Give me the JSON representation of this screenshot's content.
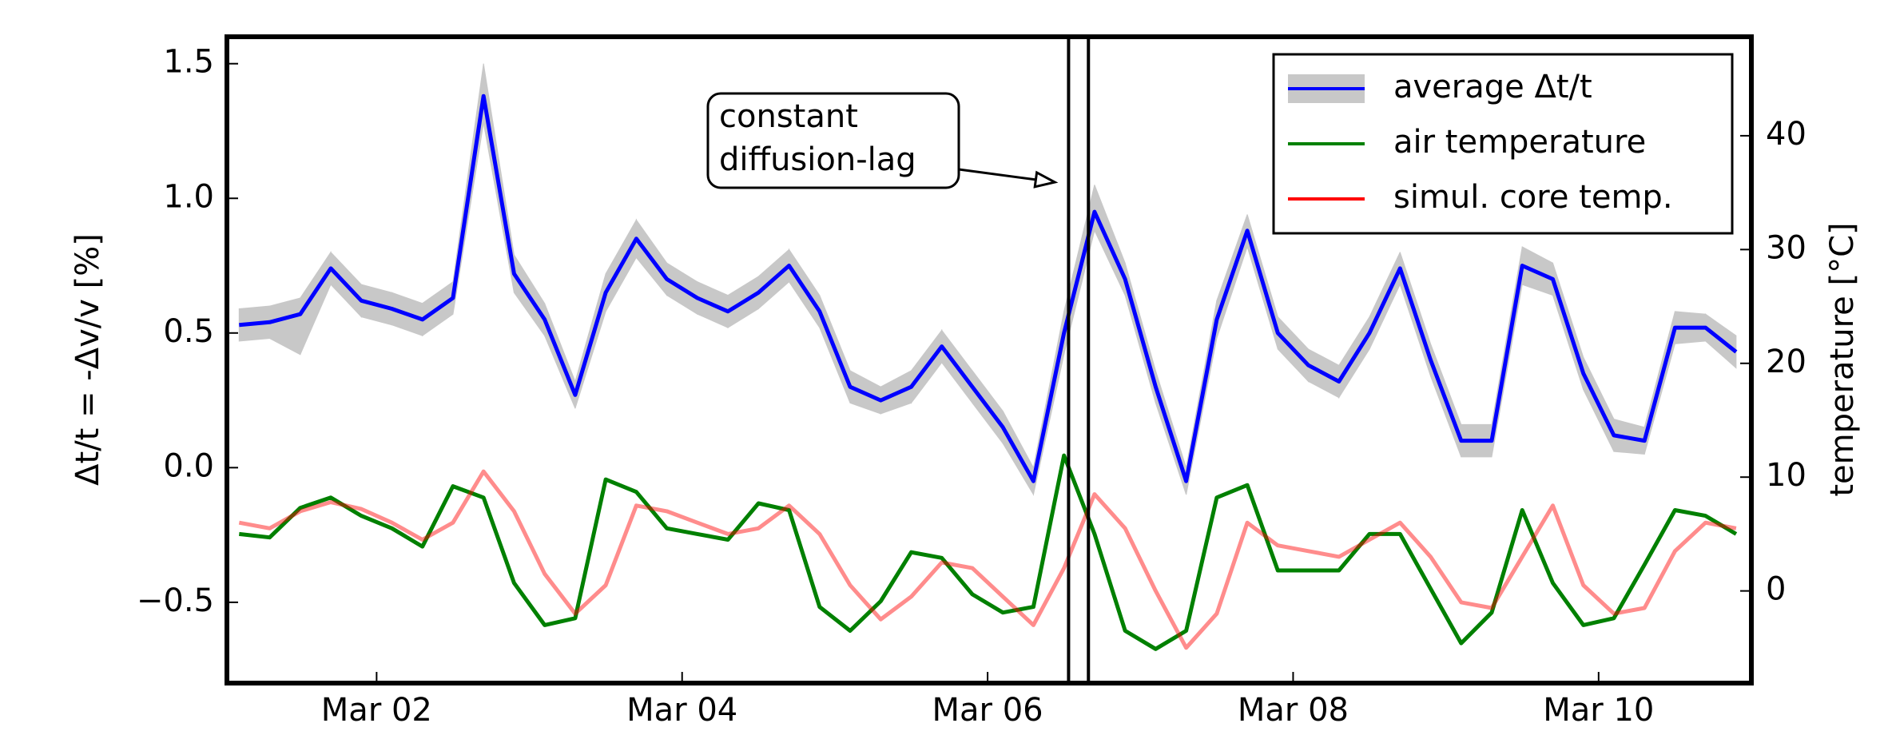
{
  "chart_data": {
    "type": "line",
    "ylabel": "Δt/t = -Δv/v [%]",
    "y2label": "temperature [°C]",
    "x": [
      1.1,
      1.3,
      1.5,
      1.7,
      1.9,
      2.1,
      2.3,
      2.5,
      2.7,
      2.9,
      3.1,
      3.3,
      3.5,
      3.7,
      3.9,
      4.1,
      4.3,
      4.5,
      4.7,
      4.9,
      5.1,
      5.3,
      5.5,
      5.7,
      5.9,
      6.1,
      6.3,
      6.5,
      6.7,
      6.9,
      7.1,
      7.3,
      7.5,
      7.7,
      7.9,
      8.1,
      8.3,
      8.5,
      8.7,
      8.9,
      9.1,
      9.3,
      9.5,
      9.7,
      9.9,
      10.1,
      10.3,
      10.5,
      10.7,
      10.9
    ],
    "xlim": [
      1.02,
      11
    ],
    "xticks": [
      {
        "value": 2,
        "label": "Mar 02"
      },
      {
        "value": 4,
        "label": "Mar 04"
      },
      {
        "value": 6,
        "label": "Mar 06"
      },
      {
        "value": 8,
        "label": "Mar 08"
      },
      {
        "value": 10,
        "label": "Mar 10"
      }
    ],
    "ylim": [
      -0.8,
      1.6
    ],
    "yticks": [
      {
        "value": -0.5,
        "label": "−0.5"
      },
      {
        "value": 0,
        "label": "0.0"
      },
      0.5,
      {
        "value": 1,
        "label": "1.0"
      },
      1.5
    ],
    "y2lim": [
      -8.1,
      48.7
    ],
    "y2ticks": [
      0,
      10,
      20,
      30,
      40
    ],
    "legend": "upper right",
    "series": [
      {
        "name": "average Δt/t",
        "color": "#0000ff",
        "band_color": "#c8c8c8",
        "values": [
          0.53,
          0.54,
          0.57,
          0.74,
          0.62,
          0.59,
          0.55,
          0.63,
          1.38,
          0.72,
          0.55,
          0.27,
          0.65,
          0.85,
          0.7,
          0.63,
          0.58,
          0.65,
          0.75,
          0.58,
          0.3,
          0.25,
          0.3,
          0.45,
          0.3,
          0.15,
          -0.05,
          0.5,
          0.95,
          0.7,
          0.3,
          -0.05,
          0.55,
          0.88,
          0.5,
          0.38,
          0.32,
          0.5,
          0.74,
          0.4,
          0.1,
          0.1,
          0.75,
          0.7,
          0.35,
          0.12,
          0.1,
          0.52,
          0.52,
          0.43
        ],
        "lower": [
          0.47,
          0.48,
          0.42,
          0.68,
          0.56,
          0.53,
          0.49,
          0.57,
          1.28,
          0.65,
          0.49,
          0.22,
          0.58,
          0.78,
          0.64,
          0.57,
          0.52,
          0.59,
          0.69,
          0.52,
          0.24,
          0.2,
          0.24,
          0.39,
          0.24,
          0.09,
          -0.1,
          0.42,
          0.88,
          0.64,
          0.24,
          -0.1,
          0.48,
          0.82,
          0.44,
          0.32,
          0.26,
          0.44,
          0.68,
          0.34,
          0.04,
          0.04,
          0.68,
          0.64,
          0.29,
          0.06,
          0.05,
          0.46,
          0.47,
          0.37
        ],
        "upper": [
          0.59,
          0.6,
          0.63,
          0.8,
          0.68,
          0.65,
          0.61,
          0.69,
          1.5,
          0.79,
          0.61,
          0.32,
          0.72,
          0.92,
          0.76,
          0.69,
          0.64,
          0.71,
          0.81,
          0.64,
          0.36,
          0.3,
          0.36,
          0.51,
          0.36,
          0.21,
          0.0,
          0.58,
          1.05,
          0.76,
          0.36,
          0.0,
          0.62,
          0.94,
          0.56,
          0.44,
          0.38,
          0.56,
          0.8,
          0.46,
          0.16,
          0.16,
          0.82,
          0.76,
          0.41,
          0.18,
          0.15,
          0.58,
          0.57,
          0.49
        ]
      },
      {
        "name": "air temperature",
        "color": "#008000",
        "axis": "y2",
        "values": [
          5.0,
          4.7,
          7.3,
          8.2,
          6.6,
          5.5,
          3.9,
          9.2,
          8.2,
          0.7,
          -3.0,
          -2.4,
          9.8,
          8.7,
          5.5,
          5.0,
          4.5,
          7.7,
          7.1,
          -1.4,
          -3.5,
          -0.9,
          3.4,
          2.9,
          -0.3,
          -1.9,
          -1.4,
          11.9,
          5.0,
          -3.5,
          -5.1,
          -3.5,
          8.2,
          9.3,
          1.8,
          1.8,
          1.8,
          5.0,
          5.0,
          0.2,
          -4.6,
          -1.9,
          7.1,
          0.7,
          -3.0,
          -2.4,
          2.3,
          7.1,
          6.6,
          5.0
        ]
      },
      {
        "name": "simul. core temp.",
        "color": "#ff0000",
        "alpha": 0.45,
        "axis": "y2",
        "values": [
          6.0,
          5.5,
          7.0,
          7.8,
          7.2,
          6.0,
          4.5,
          6.0,
          10.5,
          7.0,
          1.5,
          -2.0,
          0.5,
          7.5,
          7.0,
          6.0,
          5.0,
          5.5,
          7.5,
          5.0,
          0.5,
          -2.5,
          -0.5,
          2.5,
          2.0,
          -0.5,
          -3.0,
          2.0,
          8.5,
          5.5,
          0.0,
          -5.0,
          -2.0,
          6.0,
          4.0,
          3.5,
          3.0,
          4.5,
          6.0,
          3.0,
          -1.0,
          -1.5,
          3.0,
          7.5,
          0.5,
          -2.0,
          -1.5,
          3.5,
          6.0,
          5.5
        ]
      }
    ],
    "vlines": [
      6.53,
      6.66
    ],
    "annotation": {
      "text": [
        "constant",
        "diffusion-lag"
      ],
      "x": 6.44,
      "y": 1.06
    }
  }
}
